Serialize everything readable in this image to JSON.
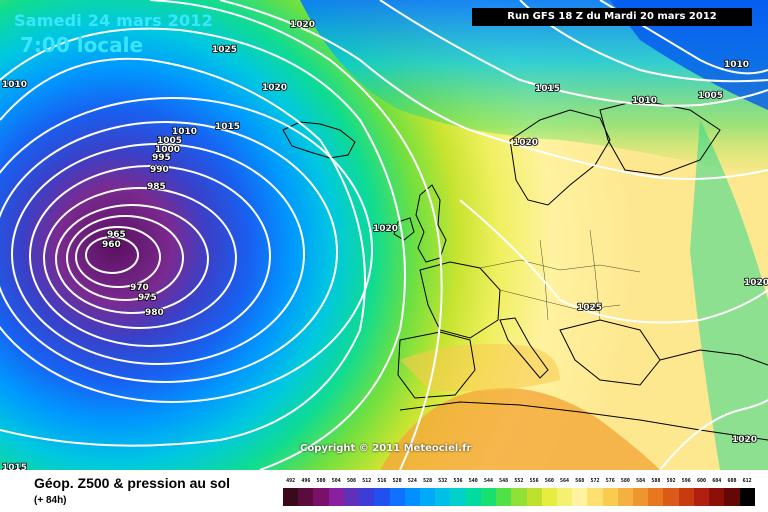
{
  "header": {
    "date_line": "Samedi 24 mars 2012",
    "time_line": "7:00 locale",
    "run_info": "Run GFS 18 Z du Mardi 20 mars 2012"
  },
  "copyright": "Copyright © 2011 Meteociel.fr",
  "footer": {
    "title": "Géop. Z500 & pression au sol",
    "subtitle": "(+ 84h)"
  },
  "scale": {
    "labels": [
      "492",
      "496",
      "500",
      "504",
      "508",
      "512",
      "516",
      "520",
      "524",
      "528",
      "532",
      "536",
      "540",
      "544",
      "548",
      "552",
      "556",
      "560",
      "564",
      "568",
      "572",
      "576",
      "580",
      "584",
      "588",
      "592",
      "596",
      "600",
      "604",
      "608",
      "612"
    ],
    "colors": [
      "#3a0a1a",
      "#5a0c3c",
      "#7a106a",
      "#8a20a0",
      "#6030b8",
      "#3c3cd6",
      "#2050ee",
      "#1070ff",
      "#0090ff",
      "#00aaf8",
      "#00c0e8",
      "#00d0c8",
      "#00dca0",
      "#18e070",
      "#50e048",
      "#90e038",
      "#c0e030",
      "#e6ec40",
      "#f6f070",
      "#fff2a0",
      "#fde070",
      "#f9cc50",
      "#f4b040",
      "#ef9530",
      "#e87820",
      "#dc5a18",
      "#c83a10",
      "#b02010",
      "#8c1008",
      "#640806",
      "#000000"
    ]
  },
  "isobar_labels": [
    "1020",
    "1025",
    "1010",
    "1020",
    "1015",
    "1010",
    "1005",
    "1000",
    "995",
    "990",
    "985",
    "965",
    "960",
    "970",
    "975",
    "980",
    "1020",
    "1015",
    "1010",
    "1005",
    "1010",
    "1020",
    "1020",
    "1025",
    "1020",
    "1015",
    "1020"
  ]
}
